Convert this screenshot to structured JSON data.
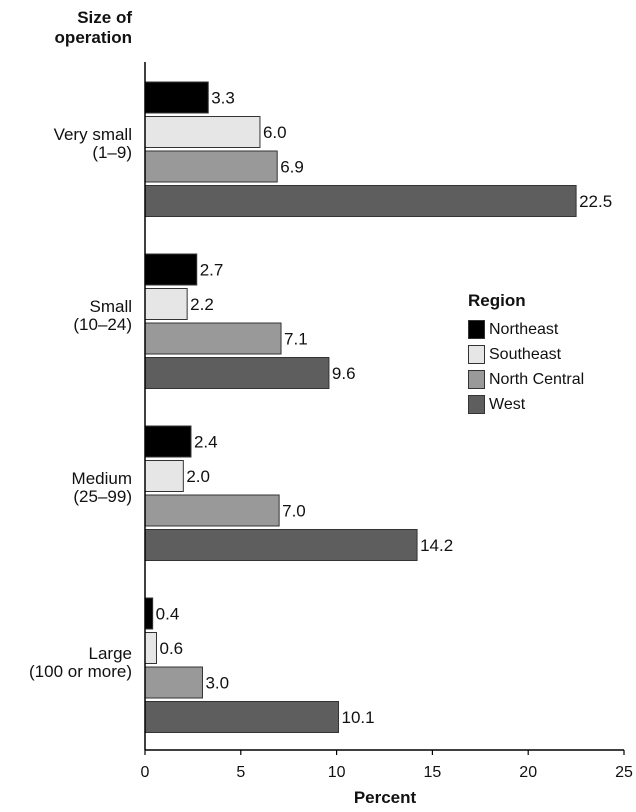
{
  "chart_data": {
    "type": "bar",
    "orientation": "horizontal",
    "y_title_lines": [
      "Size of",
      "operation"
    ],
    "xlabel": "Percent",
    "xlim": [
      0,
      25
    ],
    "xticks": [
      0,
      5,
      10,
      15,
      20,
      25
    ],
    "categories": [
      {
        "name": "Very small",
        "sub": "(1–9)"
      },
      {
        "name": "Small",
        "sub": "(10–24)"
      },
      {
        "name": "Medium",
        "sub": "(25–99)"
      },
      {
        "name": "Large",
        "sub": "(100 or more)"
      }
    ],
    "legend_title": "Region",
    "legend_position": "right",
    "grid": false,
    "series": [
      {
        "name": "Northeast",
        "color": "#000000",
        "values": [
          3.3,
          2.7,
          2.4,
          0.4
        ],
        "labels": [
          "3.3",
          "2.7",
          "2.4",
          "0.4"
        ]
      },
      {
        "name": "Southeast",
        "color": "#e6e6e6",
        "values": [
          6.0,
          2.2,
          2.0,
          0.6
        ],
        "labels": [
          "6.0",
          "2.2",
          "2.0",
          "0.6"
        ]
      },
      {
        "name": "North Central",
        "color": "#999999",
        "values": [
          6.9,
          7.1,
          7.0,
          3.0
        ],
        "labels": [
          "6.9",
          "7.1",
          "7.0",
          "3.0"
        ]
      },
      {
        "name": "West",
        "color": "#5e5e5e",
        "values": [
          22.5,
          9.6,
          14.2,
          10.1
        ],
        "labels": [
          "22.5",
          "9.6",
          "14.2",
          "10.1"
        ]
      }
    ]
  }
}
